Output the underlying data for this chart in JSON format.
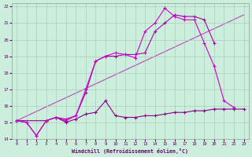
{
  "xlabel": "Windchill (Refroidissement éolien,°C)",
  "background_color": "#cceedd",
  "grid_color": "#aaccbb",
  "xlim": [
    -0.5,
    23.5
  ],
  "ylim": [
    14,
    22.2
  ],
  "xticks": [
    0,
    1,
    2,
    3,
    4,
    5,
    6,
    7,
    8,
    9,
    10,
    11,
    12,
    13,
    14,
    15,
    16,
    17,
    18,
    19,
    20,
    21,
    22,
    23
  ],
  "yticks": [
    14,
    15,
    16,
    17,
    18,
    19,
    20,
    21,
    22
  ],
  "line1_x": [
    0,
    1,
    2,
    3,
    4,
    5,
    6,
    7,
    8,
    9,
    10,
    11,
    12,
    13,
    14,
    15,
    16,
    17,
    18,
    19,
    20,
    21,
    22
  ],
  "line1_y": [
    15.1,
    15.0,
    14.2,
    15.1,
    15.3,
    15.2,
    15.4,
    17.0,
    18.7,
    19.0,
    19.2,
    19.1,
    18.9,
    20.5,
    21.0,
    21.9,
    21.4,
    21.2,
    21.2,
    19.8,
    18.4,
    16.3,
    15.9
  ],
  "line2_x": [
    0,
    1,
    2,
    3,
    4,
    5,
    6,
    7,
    8,
    9,
    10,
    11,
    12,
    13,
    14,
    15,
    16,
    17,
    18,
    19,
    20,
    21,
    22,
    23
  ],
  "line2_y": [
    15.1,
    15.0,
    14.2,
    15.1,
    15.3,
    15.1,
    15.4,
    16.8,
    18.7,
    19.0,
    19.0,
    19.1,
    19.1,
    19.2,
    20.5,
    21.0,
    21.5,
    21.4,
    21.4,
    21.2,
    19.8,
    null,
    null,
    null
  ],
  "line3_x": [
    0,
    3,
    4,
    5,
    6,
    7,
    8,
    9,
    10,
    11,
    12,
    13,
    14,
    15,
    16,
    17,
    18,
    19,
    20,
    21,
    22,
    23
  ],
  "line3_y": [
    15.1,
    15.1,
    15.3,
    15.0,
    15.2,
    15.5,
    15.6,
    16.3,
    15.4,
    15.3,
    15.3,
    15.4,
    15.4,
    15.5,
    15.6,
    15.6,
    15.7,
    15.7,
    15.8,
    15.8,
    15.8,
    15.8
  ],
  "line4_x": [
    0,
    23
  ],
  "line4_y": [
    15.1,
    21.5
  ],
  "color_bright": "#cc00cc",
  "color_mid": "#aa00aa",
  "color_dark": "#880088",
  "color_diag": "#bb44bb"
}
